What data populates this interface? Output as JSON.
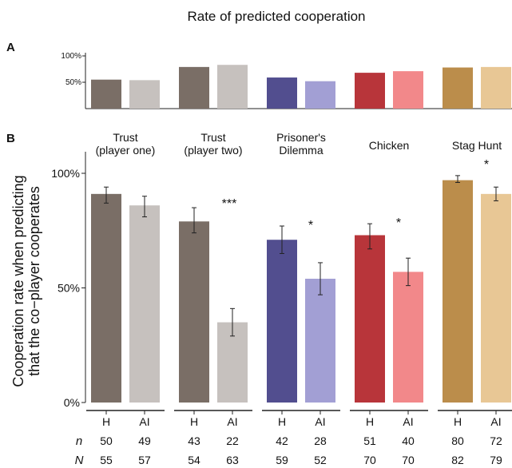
{
  "figure": {
    "title": "Rate of predicted cooperation",
    "panel_a_label": "A",
    "panel_b_label": "B",
    "row_n_label": "n",
    "row_N_label": "N"
  },
  "colors": {
    "trust1_h": "#7a6e66",
    "trust1_ai": "#c6c1be",
    "trust2_h": "#7a6e66",
    "trust2_ai": "#c6c1be",
    "pd_h": "#524e8f",
    "pd_ai": "#a29fd4",
    "chicken_h": "#b8353a",
    "chicken_ai": "#f2888a",
    "stag_h": "#bb8d4b",
    "stag_ai": "#e8c795"
  },
  "chart_data": [
    {
      "panel": "A",
      "type": "bar",
      "ytick_labels": [
        "100%",
        "50%"
      ],
      "yticks": [
        100,
        50
      ],
      "ylim": [
        0,
        100
      ],
      "series": [
        {
          "group": "Trust (player one)",
          "H": 55,
          "AI": 54
        },
        {
          "group": "Trust (player two)",
          "H": 79,
          "AI": 83
        },
        {
          "group": "Prisoner's Dilemma",
          "H": 59,
          "AI": 52
        },
        {
          "group": "Chicken",
          "H": 68,
          "AI": 71
        },
        {
          "group": "Stag Hunt",
          "H": 78,
          "AI": 79
        }
      ]
    },
    {
      "panel": "B",
      "type": "bar",
      "ylabel": "Cooperation rate when predicting\nthat the co−player cooperates",
      "ytick_labels": [
        "0%",
        "50%",
        "100%"
      ],
      "yticks": [
        0,
        50,
        100
      ],
      "ylim": [
        0,
        100
      ],
      "groups": [
        {
          "title": [
            "Trust",
            "(player one)"
          ],
          "key": "trust1",
          "bars": [
            {
              "label": "H",
              "value": 91,
              "err_low": 87,
              "err_high": 94,
              "n": "50",
              "N": "55"
            },
            {
              "label": "AI",
              "value": 86,
              "err_low": 81,
              "err_high": 90,
              "n": "49",
              "N": "57"
            }
          ],
          "sig": ""
        },
        {
          "title": [
            "Trust",
            "(player two)"
          ],
          "key": "trust2",
          "bars": [
            {
              "label": "H",
              "value": 79,
              "err_low": 74,
              "err_high": 85,
              "n": "43",
              "N": "54"
            },
            {
              "label": "AI",
              "value": 35,
              "err_low": 29,
              "err_high": 41,
              "n": "22",
              "N": "63"
            }
          ],
          "sig": "***"
        },
        {
          "title": [
            "Prisoner's",
            "Dilemma"
          ],
          "key": "pd",
          "bars": [
            {
              "label": "H",
              "value": 71,
              "err_low": 65,
              "err_high": 77,
              "n": "42",
              "N": "59"
            },
            {
              "label": "AI",
              "value": 54,
              "err_low": 47,
              "err_high": 61,
              "n": "28",
              "N": "52"
            }
          ],
          "sig": "*"
        },
        {
          "title": [
            "Chicken"
          ],
          "key": "chicken",
          "bars": [
            {
              "label": "H",
              "value": 73,
              "err_low": 67,
              "err_high": 78,
              "n": "51",
              "N": "70"
            },
            {
              "label": "AI",
              "value": 57,
              "err_low": 51,
              "err_high": 63,
              "n": "40",
              "N": "70"
            }
          ],
          "sig": "*"
        },
        {
          "title": [
            "Stag Hunt"
          ],
          "key": "stag",
          "bars": [
            {
              "label": "H",
              "value": 97,
              "err_low": 96,
              "err_high": 99,
              "n": "80",
              "N": "82"
            },
            {
              "label": "AI",
              "value": 91,
              "err_low": 88,
              "err_high": 94,
              "n": "72",
              "N": "79"
            }
          ],
          "sig": "*"
        }
      ]
    }
  ]
}
